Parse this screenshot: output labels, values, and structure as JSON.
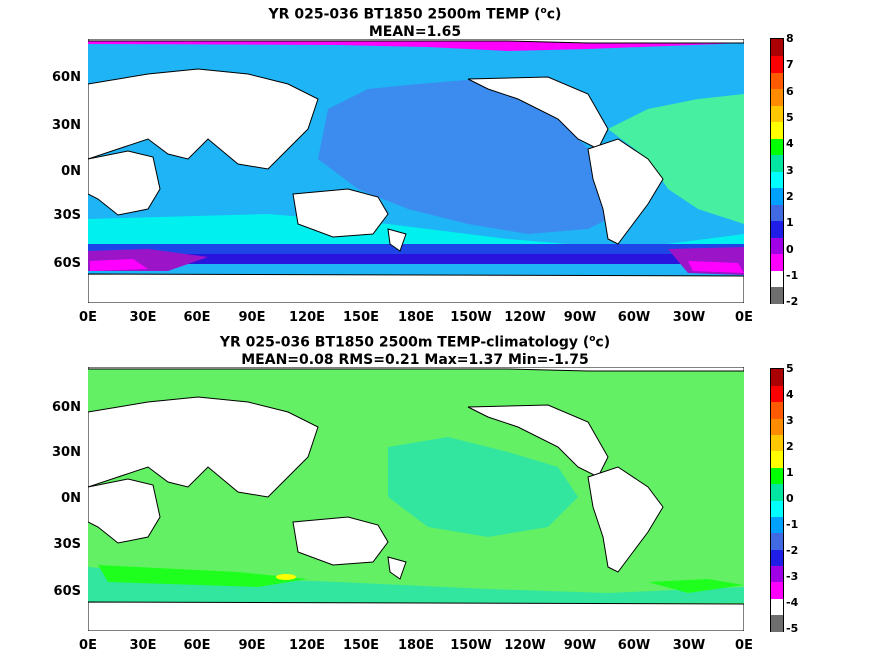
{
  "panel1": {
    "title_line1": "YR 025-036 BT1850 2500m TEMP (",
    "title_sup": "o",
    "title_unit": "c)",
    "title_line2": "MEAN=1.65",
    "colorbar_labels": [
      "8",
      "7",
      "6",
      "5",
      "4",
      "3",
      "2",
      "1",
      "0",
      "-1",
      "-2"
    ]
  },
  "panel2": {
    "title_line1": "YR 025-036 BT1850 2500m TEMP-climatology (",
    "title_sup": "o",
    "title_unit": "c)",
    "title_line2": "MEAN=0.08   RMS=0.21   Max=1.37   Min=-1.75",
    "colorbar_labels": [
      "5",
      "4",
      "3",
      "2",
      "1",
      "0",
      "-1",
      "-2",
      "-3",
      "-4",
      "-5"
    ]
  },
  "lat_labels": [
    "60N",
    "30N",
    "0N",
    "30S",
    "60S"
  ],
  "lon_labels": [
    "0E",
    "30E",
    "60E",
    "90E",
    "120E",
    "150E",
    "180E",
    "150W",
    "120W",
    "90W",
    "60W",
    "30W",
    "0E"
  ],
  "colorbar_colors": [
    "#6e6e6e",
    "#ffffff",
    "#ff00ff",
    "#a000e6",
    "#1e1ee6",
    "#4169e1",
    "#00a0ff",
    "#00ffff",
    "#00e6a0",
    "#00ff00",
    "#ffff00",
    "#ffc800",
    "#ff8c00",
    "#ff5a00",
    "#ff0000",
    "#aa0000"
  ],
  "field_colors": {
    "land": "#ffffff",
    "coast": "#000000",
    "p1_pacific": "#3c8cf0",
    "p1_indian": "#1eb4f5",
    "p1_atlantic": "#46f0a0",
    "p1_south_cyan": "#00f0f0",
    "p1_southern": "#1e46e6",
    "p1_deep": "#2814dc",
    "p1_purple": "#9b14c8",
    "p1_magenta": "#ff00ff",
    "p2_main": "#64f064",
    "p2_teal": "#32e6a0",
    "p2_green": "#1eff1e",
    "p2_yellow": "#ffff00"
  }
}
